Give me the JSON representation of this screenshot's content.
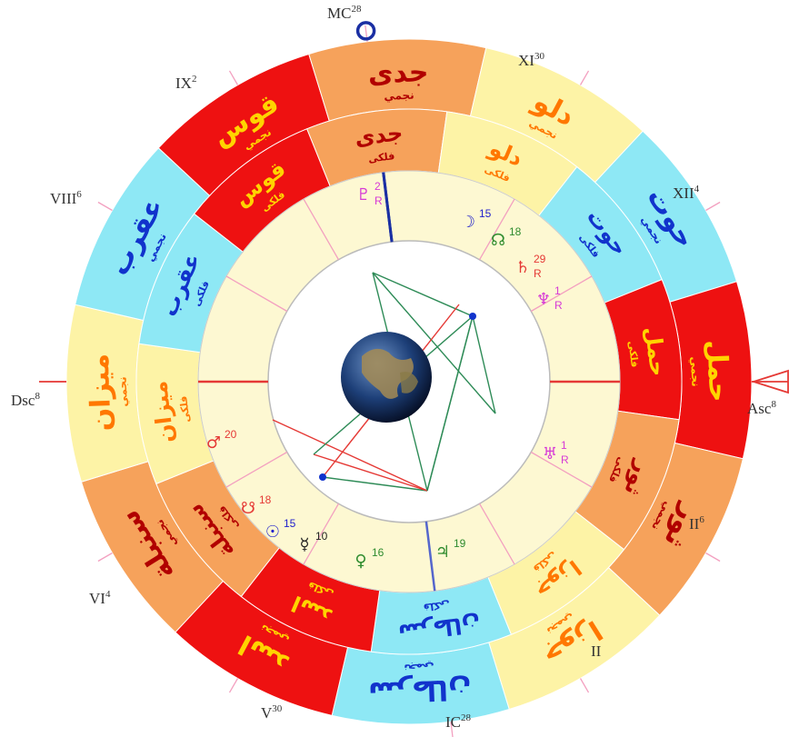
{
  "colors": {
    "fire": "#ee1111",
    "earth": "#f6a25b",
    "air": "#fdf3a6",
    "water": "#8ee8f5",
    "inner_bg": "#fdf8d2",
    "center_bg": "#ffffff",
    "mc_line": "#1a2fa3",
    "ic_line": "#5566cc",
    "asc_line": "#e53935",
    "house_line": "#f3a0c0",
    "aspect_green": "#2e8b57",
    "aspect_red": "#e53935"
  },
  "outer_ring": [
    {
      "name": "قوس",
      "sub": "نجمي",
      "color": "fire",
      "text_color": "#ffd400"
    },
    {
      "name": "جدی",
      "sub": "نجمي",
      "color": "earth",
      "text_color": "#b10000"
    },
    {
      "name": "دلو",
      "sub": "نجمي",
      "color": "air",
      "text_color": "#ff7700"
    },
    {
      "name": "حوت",
      "sub": "نجمي",
      "color": "water",
      "text_color": "#1133cc"
    },
    {
      "name": "حمل",
      "sub": "نجمي",
      "color": "fire",
      "text_color": "#ffd400"
    },
    {
      "name": "ثور",
      "sub": "نجمي",
      "color": "earth",
      "text_color": "#b10000"
    },
    {
      "name": "جوزا",
      "sub": "نجمي",
      "color": "air",
      "text_color": "#ff7700"
    },
    {
      "name": "سرطان",
      "sub": "نجمي",
      "color": "water",
      "text_color": "#1133cc"
    },
    {
      "name": "اسد",
      "sub": "نجمي",
      "color": "fire",
      "text_color": "#ffd400"
    },
    {
      "name": "سنبلة",
      "sub": "نجمي",
      "color": "earth",
      "text_color": "#b10000"
    },
    {
      "name": "ميزان",
      "sub": "نجمي",
      "color": "air",
      "text_color": "#ff7700"
    },
    {
      "name": "عقرب",
      "sub": "نجمي",
      "color": "water",
      "text_color": "#1133cc"
    }
  ],
  "inner_ring": [
    {
      "name": "جدی",
      "sub": "فلكى",
      "color": "earth",
      "text_color": "#b10000"
    },
    {
      "name": "دلو",
      "sub": "فلكى",
      "color": "air",
      "text_color": "#ff7700"
    },
    {
      "name": "حوت",
      "sub": "فلكى",
      "color": "water",
      "text_color": "#1133cc"
    },
    {
      "name": "حمل",
      "sub": "فلكى",
      "color": "fire",
      "text_color": "#ffd400"
    },
    {
      "name": "ثور",
      "sub": "فلكى",
      "color": "earth",
      "text_color": "#b10000"
    },
    {
      "name": "جوزا",
      "sub": "فلكى",
      "color": "air",
      "text_color": "#ff7700"
    },
    {
      "name": "سرطان",
      "sub": "فلكى",
      "color": "water",
      "text_color": "#1133cc"
    },
    {
      "name": "اسد",
      "sub": "فلكى",
      "color": "fire",
      "text_color": "#ffd400"
    },
    {
      "name": "سنبلة",
      "sub": "فلكى",
      "color": "earth",
      "text_color": "#b10000"
    },
    {
      "name": "ميزان",
      "sub": "فلكى",
      "color": "air",
      "text_color": "#ff7700"
    },
    {
      "name": "عقرب",
      "sub": "فلكى",
      "color": "water",
      "text_color": "#1133cc"
    },
    {
      "name": "قوس",
      "sub": "فلكى",
      "color": "fire",
      "text_color": "#ffd400"
    }
  ],
  "cusps": [
    {
      "label": "MC",
      "deg": "28"
    },
    {
      "label": "XI",
      "deg": "30"
    },
    {
      "label": "XII",
      "deg": "4"
    },
    {
      "label": "Asc",
      "deg": "8"
    },
    {
      "label": "II",
      "deg": "6"
    },
    {
      "label": "II",
      "deg": ""
    },
    {
      "label": "IC",
      "deg": "28"
    },
    {
      "label": "V",
      "deg": "30"
    },
    {
      "label": "VI",
      "deg": "4"
    },
    {
      "label": "Dsc",
      "deg": "8"
    },
    {
      "label": "VIII",
      "deg": "6"
    },
    {
      "label": "IX",
      "deg": "2"
    }
  ],
  "planets": [
    {
      "glyph": "♇",
      "deg": "2",
      "retro": "R",
      "color": "#d63ad6"
    },
    {
      "glyph": "☽",
      "deg": "15",
      "retro": "",
      "color": "#2222cc"
    },
    {
      "glyph": "☊",
      "deg": "18",
      "retro": "",
      "color": "#2e8b2e"
    },
    {
      "glyph": "♄",
      "deg": "29",
      "retro": "R",
      "color": "#e53935"
    },
    {
      "glyph": "♆",
      "deg": "1",
      "retro": "R",
      "color": "#d63ad6"
    },
    {
      "glyph": "♅",
      "deg": "1",
      "retro": "R",
      "color": "#d63ad6"
    },
    {
      "glyph": "♃",
      "deg": "19",
      "retro": "",
      "color": "#2e8b2e"
    },
    {
      "glyph": "♀",
      "deg": "16",
      "retro": "",
      "color": "#2e8b2e"
    },
    {
      "glyph": "☿",
      "deg": "10",
      "retro": "",
      "color": "#222222"
    },
    {
      "glyph": "☉",
      "deg": "15",
      "retro": "",
      "color": "#2222cc"
    },
    {
      "glyph": "☋",
      "deg": "18",
      "retro": "",
      "color": "#e53935"
    },
    {
      "glyph": "♂",
      "deg": "20",
      "retro": "",
      "color": "#e53935"
    }
  ]
}
